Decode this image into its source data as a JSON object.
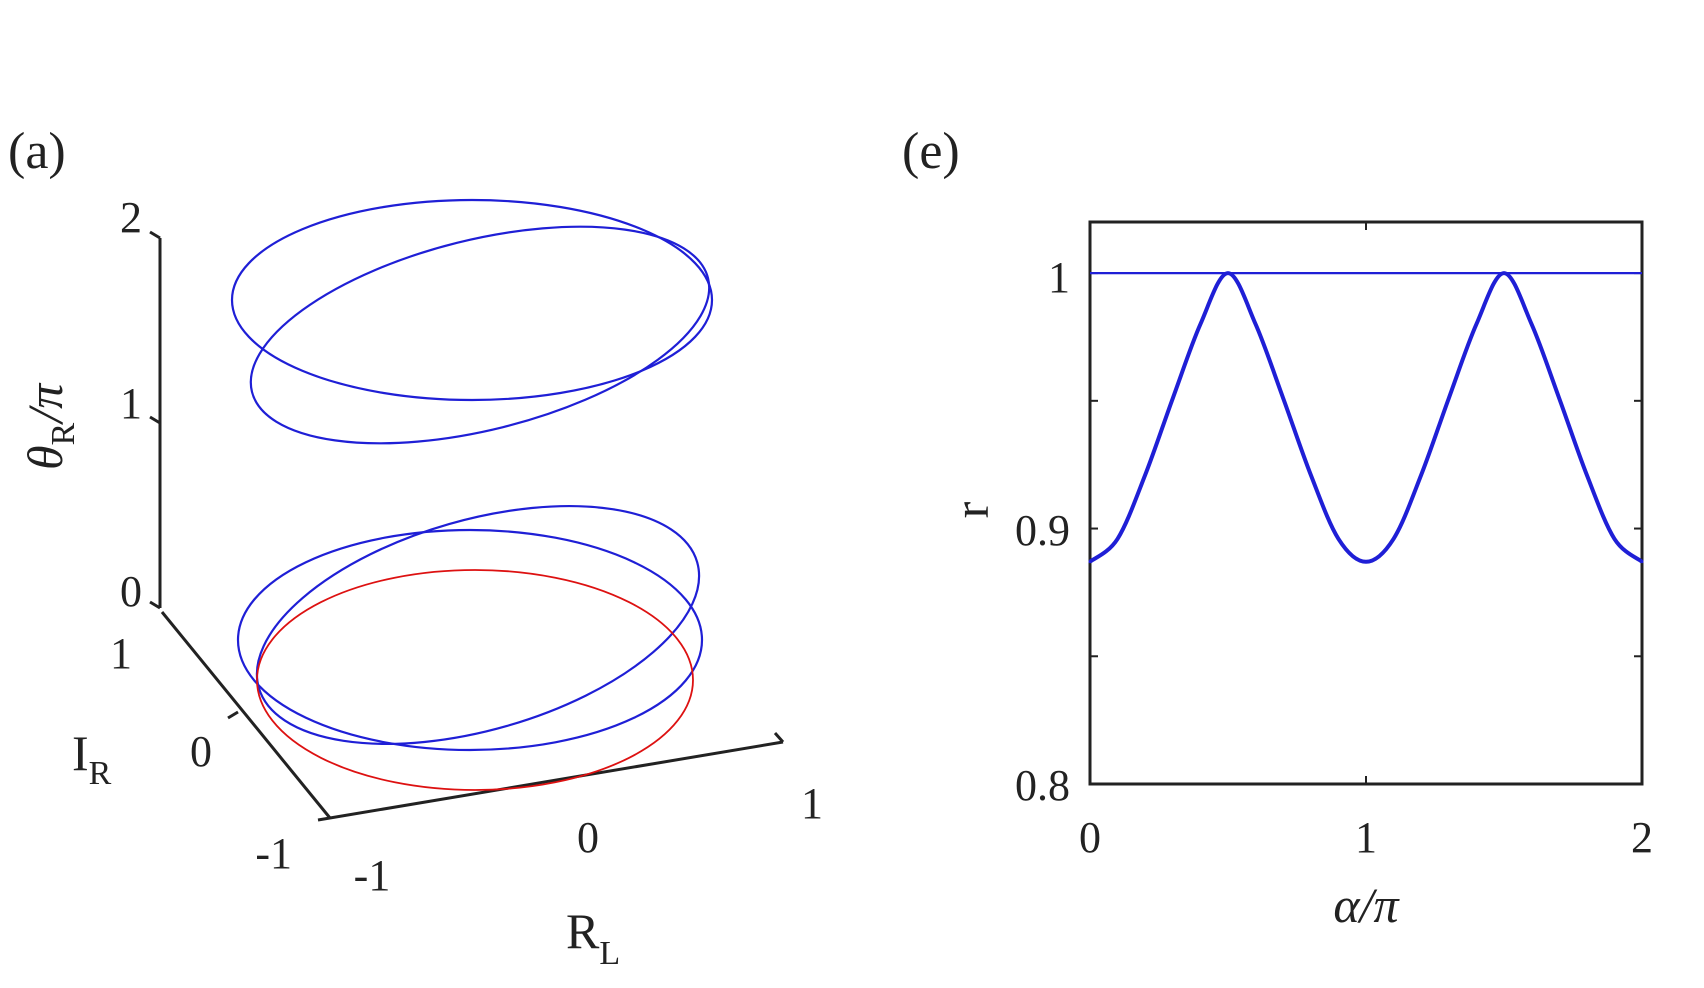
{
  "panels": {
    "a": {
      "label": "(a)",
      "z_label": {
        "main": "θ",
        "sub": "R",
        "suffix": "/π"
      },
      "y_label": {
        "main": "I",
        "sub": "R"
      },
      "x_label": {
        "main": "R",
        "sub": "L"
      },
      "z_ticks": [
        "2",
        "1",
        "0"
      ],
      "y_ticks": [
        "1",
        "0",
        "-1"
      ],
      "x_ticks": [
        "-1",
        "0",
        "1"
      ]
    },
    "e": {
      "label": "(e)",
      "xlabel": {
        "main": "α",
        "suffix": "/π"
      },
      "ylabel": "r",
      "x_ticks": [
        "0",
        "1",
        "2"
      ],
      "y_ticks": [
        "1",
        "0.9",
        "0.8"
      ]
    }
  },
  "colors": {
    "blue": "#1f1fd6",
    "red": "#dd1111",
    "axis": "#222222"
  },
  "chart_data": [
    {
      "type": "scatter",
      "panel": "a",
      "projection": "3d",
      "xlabel": "R_L",
      "ylabel": "I_R",
      "zlabel": "θ_R/π",
      "xlim": [
        -1,
        1
      ],
      "ylim": [
        -1,
        1
      ],
      "zlim": [
        0,
        2
      ],
      "series": [
        {
          "color": "#1f1fd6",
          "curve": "orbit, upper tilted ellipse",
          "z_range": [
            1,
            2
          ]
        },
        {
          "color": "#1f1fd6",
          "curve": "orbit, upper ellipse (crossing)",
          "z_range": [
            1,
            2
          ]
        },
        {
          "color": "#1f1fd6",
          "curve": "orbit, lower tilted ellipse",
          "z_range": [
            0,
            1
          ]
        },
        {
          "color": "#1f1fd6",
          "curve": "orbit, lower flat ring",
          "z_range": [
            0,
            0
          ]
        },
        {
          "color": "#dd1111",
          "curve": "unit circle",
          "z_range": [
            0,
            0
          ]
        }
      ]
    },
    {
      "type": "line",
      "panel": "e",
      "xlabel": "α/π",
      "ylabel": "r",
      "xlim": [
        0,
        2
      ],
      "ylim": [
        0.8,
        1.02
      ],
      "series": [
        {
          "color": "#1f1fd6",
          "x": [
            0,
            2
          ],
          "y": [
            1.0,
            1.0
          ]
        },
        {
          "color": "#1f1fd6",
          "x": [
            0.0,
            0.1,
            0.2,
            0.3,
            0.4,
            0.5,
            0.6,
            0.7,
            0.8,
            0.9,
            1.0,
            1.1,
            1.2,
            1.3,
            1.4,
            1.5,
            1.6,
            1.7,
            1.8,
            1.9,
            2.0
          ],
          "y": [
            0.887,
            0.896,
            0.921,
            0.951,
            0.98,
            1.0,
            0.98,
            0.951,
            0.921,
            0.896,
            0.887,
            0.896,
            0.921,
            0.951,
            0.98,
            1.0,
            0.98,
            0.951,
            0.921,
            0.896,
            0.887
          ]
        }
      ]
    }
  ]
}
